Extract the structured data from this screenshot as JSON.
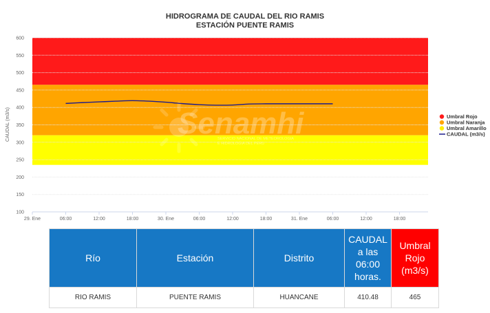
{
  "chart_data": {
    "type": "line",
    "title": "HIDROGRAMA DE CAUDAL DEL RIO RAMIS",
    "subtitle": "ESTACIÓN PUENTE RAMIS",
    "ylabel": "CAUDAL (m3/s)",
    "ylim": [
      100,
      600
    ],
    "yticks": [
      100,
      150,
      200,
      250,
      300,
      350,
      400,
      450,
      500,
      550,
      600
    ],
    "x_tick_labels": [
      "29. Ene",
      "06:00",
      "12:00",
      "18:00",
      "30. Ene",
      "06:00",
      "12:00",
      "18:00",
      "31. Ene",
      "06:00",
      "12:00",
      "18:00"
    ],
    "x_hour_range": [
      0,
      66
    ],
    "grid": true,
    "legend_position": "right",
    "bands": [
      {
        "name": "Umbral Rojo",
        "from": 465,
        "to": 600,
        "color": "#ff1a1a"
      },
      {
        "name": "Umbral Naranja",
        "from": 320,
        "to": 465,
        "color": "#ffa500"
      },
      {
        "name": "Umbral Amarillo",
        "from": 235,
        "to": 320,
        "color": "#ffff00"
      }
    ],
    "series": [
      {
        "name": "CAUDAL (m3/s)",
        "color": "#1c1c8c",
        "hours": [
          6,
          9,
          12,
          15,
          18,
          21,
          24,
          27,
          30,
          33,
          36,
          39,
          42,
          45,
          48,
          51,
          54
        ],
        "values": [
          411.5,
          414,
          416,
          418,
          419.5,
          418,
          415,
          411,
          408,
          406.5,
          407,
          410,
          410.5,
          410.5,
          410.5,
          410.5,
          410.5
        ]
      }
    ]
  },
  "watermark": {
    "text": "Senamhi",
    "line1": "SERVICIO NACIONAL DE METEOROLOGIA",
    "line2": "E HIDROLOGIA DEL PERU"
  },
  "table": {
    "headers": [
      "Río",
      "Estación",
      "Distrito",
      "CAUDAL a las 06:00 horas.",
      "Umbral Rojo (m3/s)"
    ],
    "row": [
      "RIO RAMIS",
      "PUENTE RAMIS",
      "HUANCANE",
      "410.48",
      "465"
    ]
  },
  "colors": {
    "header_blue": "#1778c5",
    "header_red": "#ff0000"
  }
}
